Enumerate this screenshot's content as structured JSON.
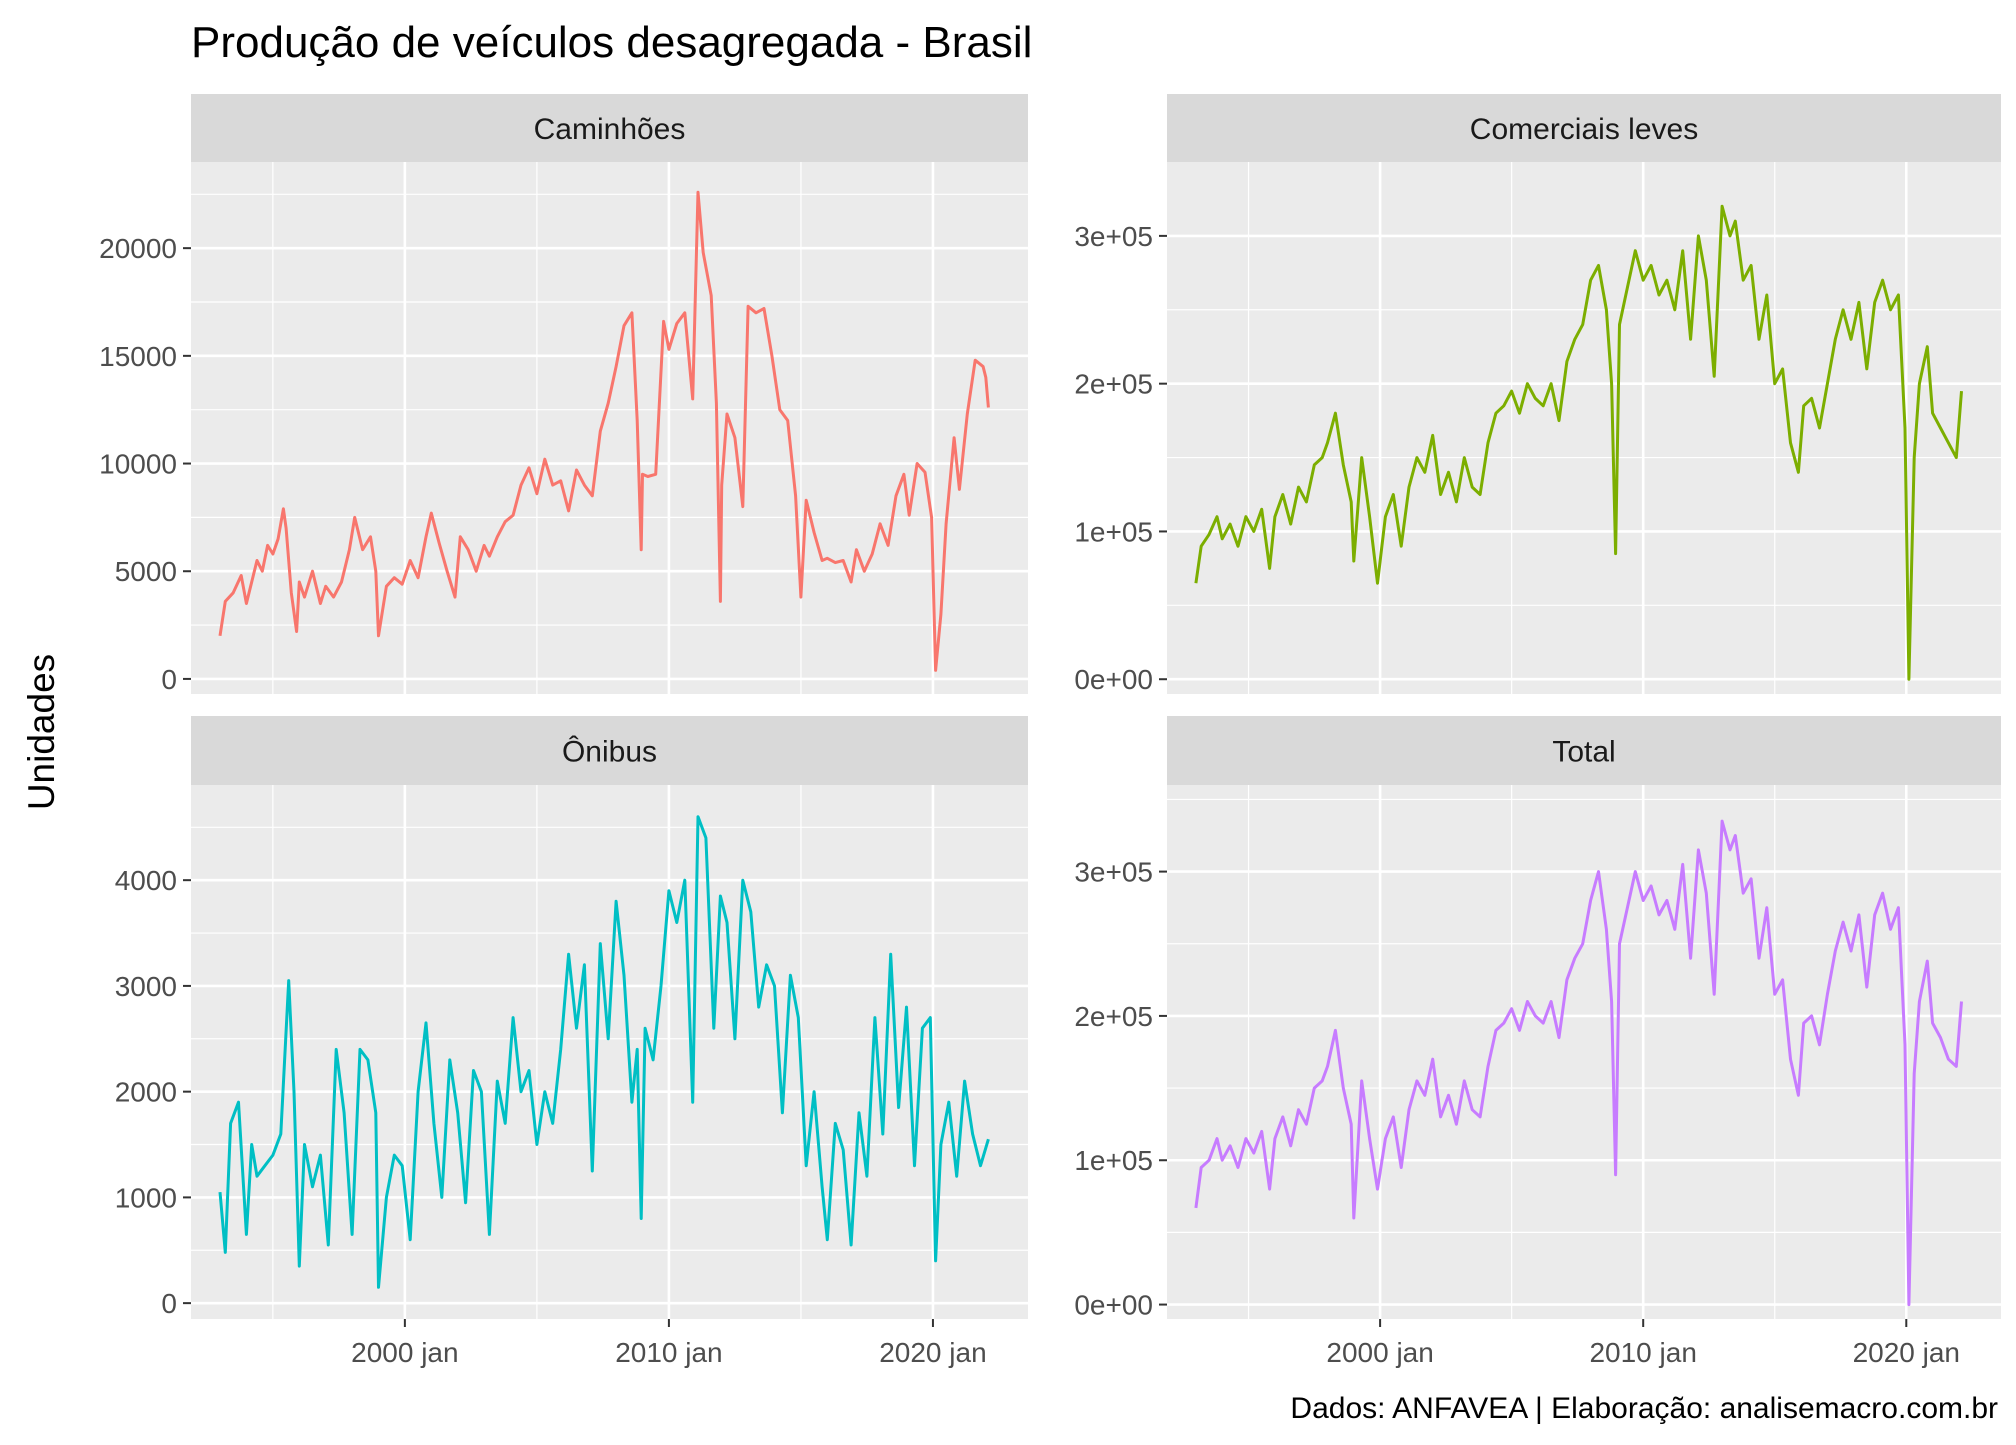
{
  "title": "Produção de veículos desagregada - Brasil",
  "ylabel": "Unidades",
  "caption": "Dados: ANFAVEA | Elaboração: analisemacro.com.br",
  "chart_data": {
    "type": "line",
    "facet_layout": "2x2",
    "x_ticks": [
      {
        "value": 2000,
        "label": "2000 jan"
      },
      {
        "value": 2010,
        "label": "2010 jan"
      },
      {
        "value": 2020,
        "label": "2020 jan"
      }
    ],
    "xlim": [
      1991.9,
      2023.6
    ],
    "panels": [
      {
        "name": "Caminhões",
        "color": "#F8766D",
        "ylim": [
          -700,
          24000
        ],
        "y_ticks": [
          {
            "value": 0,
            "label": "0"
          },
          {
            "value": 5000,
            "label": "5000"
          },
          {
            "value": 10000,
            "label": "10000"
          },
          {
            "value": 15000,
            "label": "15000"
          },
          {
            "value": 20000,
            "label": "20000"
          }
        ],
        "x": [
          1993.0,
          1993.2,
          1993.5,
          1993.8,
          1994.0,
          1994.2,
          1994.4,
          1994.6,
          1994.8,
          1995.0,
          1995.2,
          1995.4,
          1995.5,
          1995.7,
          1995.9,
          1996.0,
          1996.2,
          1996.5,
          1996.8,
          1997.0,
          1997.3,
          1997.6,
          1997.9,
          1998.1,
          1998.4,
          1998.7,
          1998.9,
          1999.0,
          1999.3,
          1999.6,
          1999.9,
          2000.2,
          2000.5,
          2000.8,
          2001.0,
          2001.3,
          2001.6,
          2001.9,
          2002.1,
          2002.4,
          2002.7,
          2003.0,
          2003.2,
          2003.5,
          2003.8,
          2004.1,
          2004.4,
          2004.7,
          2005.0,
          2005.3,
          2005.6,
          2005.9,
          2006.2,
          2006.5,
          2006.8,
          2007.1,
          2007.4,
          2007.7,
          2008.0,
          2008.3,
          2008.6,
          2008.8,
          2008.95,
          2009.0,
          2009.2,
          2009.5,
          2009.8,
          2010.0,
          2010.3,
          2010.6,
          2010.9,
          2011.1,
          2011.3,
          2011.6,
          2011.8,
          2011.95,
          2012.0,
          2012.2,
          2012.5,
          2012.8,
          2013.0,
          2013.3,
          2013.6,
          2013.9,
          2014.2,
          2014.5,
          2014.8,
          2015.0,
          2015.2,
          2015.5,
          2015.8,
          2016.0,
          2016.3,
          2016.6,
          2016.9,
          2017.1,
          2017.4,
          2017.7,
          2018.0,
          2018.3,
          2018.6,
          2018.9,
          2019.1,
          2019.4,
          2019.7,
          2019.95,
          2020.1,
          2020.3,
          2020.5,
          2020.8,
          2021.0,
          2021.3,
          2021.6,
          2021.9,
          2022.0,
          2022.1
        ],
        "values": [
          2000,
          3600,
          4000,
          4800,
          3500,
          4500,
          5500,
          5000,
          6200,
          5800,
          6500,
          7900,
          7000,
          4000,
          2200,
          4500,
          3800,
          5000,
          3500,
          4300,
          3800,
          4500,
          6000,
          7500,
          6000,
          6600,
          5000,
          2000,
          4300,
          4700,
          4400,
          5500,
          4700,
          6600,
          7700,
          6300,
          5000,
          3800,
          6600,
          6000,
          5000,
          6200,
          5700,
          6600,
          7300,
          7600,
          9000,
          9800,
          8600,
          10200,
          9000,
          9200,
          7800,
          9700,
          9000,
          8500,
          11500,
          12800,
          14500,
          16400,
          17000,
          12000,
          6000,
          9500,
          9400,
          9500,
          16600,
          15300,
          16500,
          17000,
          13000,
          22600,
          19800,
          17800,
          12800,
          3600,
          9000,
          12300,
          11200,
          8000,
          17300,
          17000,
          17200,
          15000,
          12500,
          12000,
          8500,
          3800,
          8300,
          6800,
          5500,
          5600,
          5400,
          5500,
          4500,
          6000,
          5000,
          5800,
          7200,
          6200,
          8500,
          9500,
          7600,
          10000,
          9600,
          7500,
          400,
          3000,
          7200,
          11200,
          8800,
          12300,
          14800,
          14500,
          14000,
          12600
        ]
      },
      {
        "name": "Comerciais leves",
        "color": "#7CAE00",
        "ylim": [
          -10000,
          350000
        ],
        "y_ticks": [
          {
            "value": 0,
            "label": "0e+00"
          },
          {
            "value": 100000,
            "label": "1e+05"
          },
          {
            "value": 200000,
            "label": "2e+05"
          },
          {
            "value": 300000,
            "label": "3e+05"
          }
        ],
        "x": [
          1993.0,
          1993.2,
          1993.5,
          1993.8,
          1994.0,
          1994.3,
          1994.6,
          1994.9,
          1995.2,
          1995.5,
          1995.8,
          1996.0,
          1996.3,
          1996.6,
          1996.9,
          1997.2,
          1997.5,
          1997.8,
          1998.0,
          1998.3,
          1998.6,
          1998.9,
          1999.0,
          1999.3,
          1999.6,
          1999.9,
          2000.2,
          2000.5,
          2000.8,
          2001.1,
          2001.4,
          2001.7,
          2002.0,
          2002.3,
          2002.6,
          2002.9,
          2003.2,
          2003.5,
          2003.8,
          2004.1,
          2004.4,
          2004.7,
          2005.0,
          2005.3,
          2005.6,
          2005.9,
          2006.2,
          2006.5,
          2006.8,
          2007.1,
          2007.4,
          2007.7,
          2008.0,
          2008.3,
          2008.6,
          2008.8,
          2008.95,
          2009.1,
          2009.4,
          2009.7,
          2010.0,
          2010.3,
          2010.6,
          2010.9,
          2011.2,
          2011.5,
          2011.8,
          2012.1,
          2012.4,
          2012.7,
          2013.0,
          2013.3,
          2013.5,
          2013.8,
          2014.1,
          2014.4,
          2014.7,
          2015.0,
          2015.3,
          2015.6,
          2015.9,
          2016.1,
          2016.4,
          2016.7,
          2017.0,
          2017.3,
          2017.6,
          2017.9,
          2018.2,
          2018.5,
          2018.8,
          2019.1,
          2019.4,
          2019.7,
          2019.95,
          2020.1,
          2020.3,
          2020.5,
          2020.8,
          2021.0,
          2021.3,
          2021.6,
          2021.9,
          2022.1
        ],
        "values": [
          65000,
          90000,
          98000,
          110000,
          95000,
          105000,
          90000,
          110000,
          100000,
          115000,
          75000,
          110000,
          125000,
          105000,
          130000,
          120000,
          145000,
          150000,
          160000,
          180000,
          145000,
          120000,
          80000,
          150000,
          110000,
          65000,
          110000,
          125000,
          90000,
          130000,
          150000,
          140000,
          165000,
          125000,
          140000,
          120000,
          150000,
          130000,
          125000,
          160000,
          180000,
          185000,
          195000,
          180000,
          200000,
          190000,
          185000,
          200000,
          175000,
          215000,
          230000,
          240000,
          270000,
          280000,
          250000,
          200000,
          85000,
          240000,
          265000,
          290000,
          270000,
          280000,
          260000,
          270000,
          250000,
          290000,
          230000,
          300000,
          270000,
          205000,
          320000,
          300000,
          310000,
          270000,
          280000,
          230000,
          260000,
          200000,
          210000,
          160000,
          140000,
          185000,
          190000,
          170000,
          200000,
          230000,
          250000,
          230000,
          255000,
          210000,
          255000,
          270000,
          250000,
          260000,
          170000,
          0,
          150000,
          200000,
          225000,
          180000,
          170000,
          160000,
          150000,
          195000
        ]
      },
      {
        "name": "Ônibus",
        "color": "#00BFC4",
        "ylim": [
          -150,
          4900
        ],
        "y_ticks": [
          {
            "value": 0,
            "label": "0"
          },
          {
            "value": 1000,
            "label": "1000"
          },
          {
            "value": 2000,
            "label": "2000"
          },
          {
            "value": 3000,
            "label": "3000"
          },
          {
            "value": 4000,
            "label": "4000"
          }
        ],
        "x": [
          1993.0,
          1993.2,
          1993.4,
          1993.7,
          1994.0,
          1994.2,
          1994.4,
          1994.7,
          1995.0,
          1995.3,
          1995.6,
          1995.8,
          1996.0,
          1996.2,
          1996.5,
          1996.8,
          1997.1,
          1997.4,
          1997.7,
          1998.0,
          1998.3,
          1998.6,
          1998.9,
          1999.0,
          1999.3,
          1999.6,
          1999.9,
          2000.2,
          2000.5,
          2000.8,
          2001.1,
          2001.4,
          2001.7,
          2002.0,
          2002.3,
          2002.6,
          2002.9,
          2003.2,
          2003.5,
          2003.8,
          2004.1,
          2004.4,
          2004.7,
          2005.0,
          2005.3,
          2005.6,
          2005.9,
          2006.2,
          2006.5,
          2006.8,
          2007.1,
          2007.4,
          2007.7,
          2008.0,
          2008.3,
          2008.6,
          2008.8,
          2008.95,
          2009.1,
          2009.4,
          2009.7,
          2010.0,
          2010.3,
          2010.6,
          2010.9,
          2011.1,
          2011.4,
          2011.7,
          2011.95,
          2012.2,
          2012.5,
          2012.8,
          2013.1,
          2013.4,
          2013.7,
          2014.0,
          2014.3,
          2014.6,
          2014.9,
          2015.2,
          2015.5,
          2015.8,
          2016.0,
          2016.3,
          2016.6,
          2016.9,
          2017.2,
          2017.5,
          2017.8,
          2018.1,
          2018.4,
          2018.7,
          2019.0,
          2019.3,
          2019.6,
          2019.9,
          2020.1,
          2020.3,
          2020.6,
          2020.9,
          2021.2,
          2021.5,
          2021.8,
          2022.1
        ],
        "values": [
          1050,
          480,
          1700,
          1900,
          650,
          1500,
          1200,
          1300,
          1400,
          1600,
          3050,
          2000,
          350,
          1500,
          1100,
          1400,
          550,
          2400,
          1800,
          650,
          2400,
          2300,
          1800,
          150,
          1000,
          1400,
          1300,
          600,
          2000,
          2650,
          1700,
          1000,
          2300,
          1800,
          950,
          2200,
          2000,
          650,
          2100,
          1700,
          2700,
          2000,
          2200,
          1500,
          2000,
          1700,
          2400,
          3300,
          2600,
          3200,
          1250,
          3400,
          2500,
          3800,
          3100,
          1900,
          2400,
          800,
          2600,
          2300,
          3000,
          3900,
          3600,
          4000,
          1900,
          4600,
          4400,
          2600,
          3850,
          3600,
          2500,
          4000,
          3700,
          2800,
          3200,
          3000,
          1800,
          3100,
          2700,
          1300,
          2000,
          1100,
          600,
          1700,
          1450,
          550,
          1800,
          1200,
          2700,
          1600,
          3300,
          1850,
          2800,
          1300,
          2600,
          2700,
          400,
          1500,
          1900,
          1200,
          2100,
          1600,
          1300,
          1550
        ]
      },
      {
        "name": "Total",
        "color": "#C77CFF",
        "ylim": [
          -10000,
          360000
        ],
        "y_ticks": [
          {
            "value": 0,
            "label": "0e+00"
          },
          {
            "value": 100000,
            "label": "1e+05"
          },
          {
            "value": 200000,
            "label": "2e+05"
          },
          {
            "value": 300000,
            "label": "3e+05"
          }
        ],
        "x": [
          1993.0,
          1993.2,
          1993.5,
          1993.8,
          1994.0,
          1994.3,
          1994.6,
          1994.9,
          1995.2,
          1995.5,
          1995.8,
          1996.0,
          1996.3,
          1996.6,
          1996.9,
          1997.2,
          1997.5,
          1997.8,
          1998.0,
          1998.3,
          1998.6,
          1998.9,
          1999.0,
          1999.3,
          1999.6,
          1999.9,
          2000.2,
          2000.5,
          2000.8,
          2001.1,
          2001.4,
          2001.7,
          2002.0,
          2002.3,
          2002.6,
          2002.9,
          2003.2,
          2003.5,
          2003.8,
          2004.1,
          2004.4,
          2004.7,
          2005.0,
          2005.3,
          2005.6,
          2005.9,
          2006.2,
          2006.5,
          2006.8,
          2007.1,
          2007.4,
          2007.7,
          2008.0,
          2008.3,
          2008.6,
          2008.8,
          2008.95,
          2009.1,
          2009.4,
          2009.7,
          2010.0,
          2010.3,
          2010.6,
          2010.9,
          2011.2,
          2011.5,
          2011.8,
          2012.1,
          2012.4,
          2012.7,
          2013.0,
          2013.3,
          2013.5,
          2013.8,
          2014.1,
          2014.4,
          2014.7,
          2015.0,
          2015.3,
          2015.6,
          2015.9,
          2016.1,
          2016.4,
          2016.7,
          2017.0,
          2017.3,
          2017.6,
          2017.9,
          2018.2,
          2018.5,
          2018.8,
          2019.1,
          2019.4,
          2019.7,
          2019.95,
          2020.1,
          2020.3,
          2020.5,
          2020.8,
          2021.0,
          2021.3,
          2021.6,
          2021.9,
          2022.1
        ],
        "values": [
          67000,
          95000,
          100000,
          115000,
          100000,
          110000,
          95000,
          115000,
          105000,
          120000,
          80000,
          115000,
          130000,
          110000,
          135000,
          125000,
          150000,
          155000,
          165000,
          190000,
          150000,
          125000,
          60000,
          155000,
          115000,
          80000,
          115000,
          130000,
          95000,
          135000,
          155000,
          145000,
          170000,
          130000,
          145000,
          125000,
          155000,
          135000,
          130000,
          165000,
          190000,
          195000,
          205000,
          190000,
          210000,
          200000,
          195000,
          210000,
          185000,
          225000,
          240000,
          250000,
          280000,
          300000,
          260000,
          210000,
          90000,
          250000,
          275000,
          300000,
          280000,
          290000,
          270000,
          280000,
          260000,
          305000,
          240000,
          315000,
          285000,
          215000,
          335000,
          315000,
          325000,
          285000,
          295000,
          240000,
          275000,
          215000,
          225000,
          170000,
          145000,
          195000,
          200000,
          180000,
          215000,
          245000,
          265000,
          245000,
          270000,
          220000,
          270000,
          285000,
          260000,
          275000,
          180000,
          0,
          160000,
          210000,
          238000,
          195000,
          185000,
          170000,
          165000,
          210000
        ]
      }
    ]
  }
}
